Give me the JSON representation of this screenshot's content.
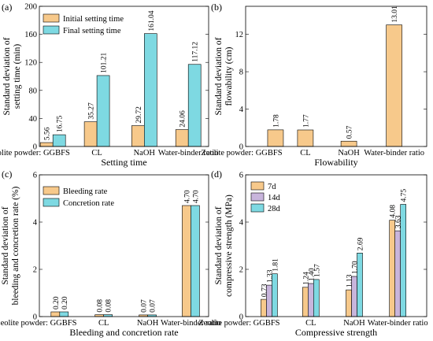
{
  "colors": {
    "orange": "#F7C98B",
    "cyan": "#7ED9E2",
    "purple": "#C8B5DC",
    "edge": "#000000"
  },
  "chart_data": [
    {
      "id": "a",
      "type": "bar",
      "panel_label": "(a)",
      "xlabel": "Setting time",
      "ylabel": "Standard deviation of setting time (min)",
      "categories": [
        "Zeolite powder: GGBFS",
        "CL",
        "NaOH",
        "Water-binder ratio"
      ],
      "series": [
        {
          "name": "Initial setting time",
          "color": "#F7C98B",
          "values": [
            5.56,
            35.27,
            29.72,
            24.06
          ]
        },
        {
          "name": "Final setting time",
          "color": "#7ED9E2",
          "values": [
            16.75,
            101.21,
            161.04,
            117.12
          ]
        }
      ],
      "value_labels": [
        [
          "5.56",
          "35.27",
          "29.72",
          "24.06"
        ],
        [
          "16.75",
          "101.21",
          "161.04",
          "117.12"
        ]
      ],
      "ylim": [
        0,
        200
      ],
      "yticks": [
        0,
        40,
        80,
        120,
        160,
        200
      ],
      "legend": "top-left"
    },
    {
      "id": "b",
      "type": "bar",
      "panel_label": "(b)",
      "xlabel": "Flowability",
      "ylabel": "Standard deviation of flowability (cm)",
      "categories": [
        "Zeolite powder: GGBFS",
        "CL",
        "NaOH",
        "Water-binder ratio"
      ],
      "series": [
        {
          "color": "#F7C98B",
          "values": [
            1.78,
            1.77,
            0.57,
            13.01
          ]
        }
      ],
      "value_labels": [
        [
          "1.78",
          "1.77",
          "0.57",
          "13.01"
        ]
      ],
      "ylim": [
        0,
        15
      ],
      "yticks": [
        0,
        4,
        8,
        12
      ],
      "ytick_labels": [
        "0",
        "4",
        "8",
        "12"
      ],
      "legend": "none"
    },
    {
      "id": "c",
      "type": "bar",
      "panel_label": "(c)",
      "xlabel": "Bleeding and concretion rate",
      "ylabel": "Standard deviation of bleeding and concretion rate (%)",
      "categories": [
        "Zeolite powder: GGBFS",
        "CL",
        "NaOH",
        "Water-binder ratio"
      ],
      "series": [
        {
          "name": "Bleeding rate",
          "color": "#F7C98B",
          "values": [
            0.2,
            0.08,
            0.07,
            4.7
          ]
        },
        {
          "name": "Concretion rate",
          "color": "#7ED9E2",
          "values": [
            0.2,
            0.08,
            0.07,
            4.7
          ]
        }
      ],
      "value_labels": [
        [
          "0.20",
          "0.08",
          "0.07",
          "4.70"
        ],
        [
          "0.20",
          "0.08",
          "0.07",
          "4.70"
        ]
      ],
      "ylim": [
        0,
        6
      ],
      "yticks": [
        0,
        2,
        4,
        6
      ],
      "legend": "top-left"
    },
    {
      "id": "d",
      "type": "bar",
      "panel_label": "(d)",
      "xlabel": "Compressive strength",
      "ylabel": "Standard deviation of compressive strength (MPa)",
      "categories": [
        "Zeolite powder: GGBFS",
        "CL",
        "NaOH",
        "Water-binder ratio"
      ],
      "series": [
        {
          "name": "7d",
          "color": "#F7C98B",
          "values": [
            0.73,
            1.24,
            1.13,
            4.08
          ]
        },
        {
          "name": "14d",
          "color": "#C8B5DC",
          "values": [
            1.33,
            1.4,
            1.7,
            3.63
          ]
        },
        {
          "name": "28d",
          "color": "#7ED9E2",
          "values": [
            1.81,
            1.57,
            2.69,
            4.75
          ]
        }
      ],
      "value_labels": [
        [
          "0.73",
          "1.24",
          "1.13",
          "4.08"
        ],
        [
          "1.33",
          "1.40",
          "1.70",
          "3.63"
        ],
        [
          "1.81",
          "1.57",
          "2.69",
          "4.75"
        ]
      ],
      "ylim": [
        0,
        6
      ],
      "yticks": [
        0,
        2,
        4,
        6
      ],
      "legend": "top-left"
    }
  ]
}
